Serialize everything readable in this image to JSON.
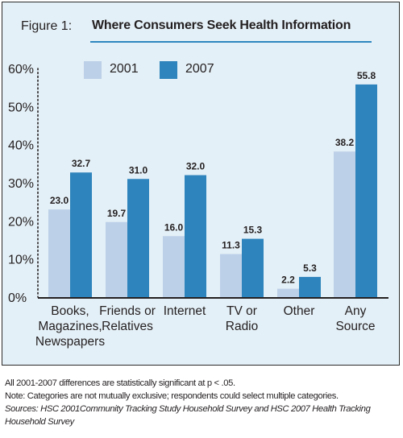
{
  "figure": {
    "label": "Figure 1:",
    "title": "Where Consumers Seek Health Information"
  },
  "colors": {
    "panel_bg": "#e4f0f7",
    "series_2001": "#bcd0e8",
    "series_2007": "#2e84bc",
    "title_rule": "#2f86bf"
  },
  "legend": [
    {
      "name": "2001",
      "color": "#bcd0e8"
    },
    {
      "name": "2007",
      "color": "#2e84bc"
    }
  ],
  "chart_data": {
    "type": "bar",
    "title": "Where Consumers Seek Health Information",
    "xlabel": "",
    "ylabel": "",
    "ylim": [
      0,
      60
    ],
    "yticks": [
      "0%",
      "10%",
      "20%",
      "30%",
      "40%",
      "50%",
      "60%"
    ],
    "grid": false,
    "legend_position": "top-left",
    "categories": [
      [
        "Books,",
        "Magazines,",
        "Newspapers"
      ],
      [
        "Friends or",
        "Relatives"
      ],
      [
        "Internet"
      ],
      [
        "TV or",
        "Radio"
      ],
      [
        "Other"
      ],
      [
        "Any",
        "Source"
      ]
    ],
    "series": [
      {
        "name": "2001",
        "values": [
          23.0,
          19.7,
          16.0,
          11.3,
          2.2,
          38.2
        ]
      },
      {
        "name": "2007",
        "values": [
          32.7,
          31.0,
          32.0,
          15.3,
          5.3,
          55.8
        ]
      }
    ]
  },
  "notes": {
    "line1": "All 2001-2007 differences are statistically significant at p < .05.",
    "line2": "Note: Categories are not mutually exclusive; respondents could select multiple categories.",
    "sources": "Sources: HSC 2001Community Tracking Study Household Survey and HSC 2007 Health Tracking Household Survey"
  }
}
